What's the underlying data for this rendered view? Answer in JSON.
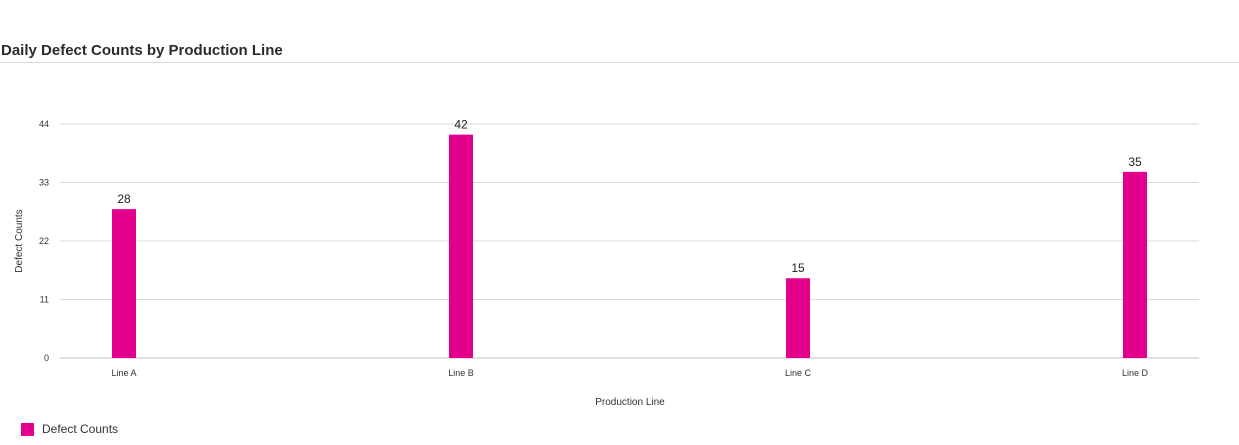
{
  "chart_data": {
    "type": "bar",
    "title": "Daily Defect Counts by Production Line",
    "xlabel": "Production Line",
    "ylabel": "Defect Counts",
    "categories": [
      "Line A",
      "Line B",
      "Line C",
      "Line D"
    ],
    "series": [
      {
        "name": "Defect Counts",
        "values": [
          28,
          42,
          15,
          35
        ],
        "color": "#e3008c"
      }
    ],
    "ylim": [
      0,
      44
    ],
    "yticks": [
      0,
      11,
      22,
      33,
      44
    ],
    "grid": true,
    "legend": "bottom-left",
    "data_labels": true
  }
}
